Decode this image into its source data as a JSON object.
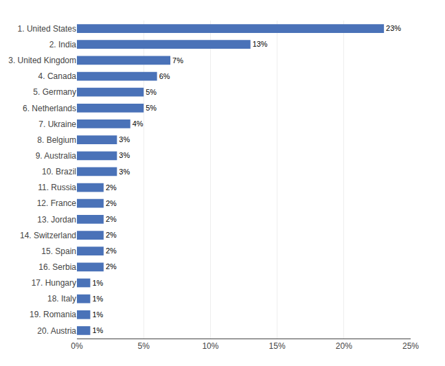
{
  "chart_data": {
    "type": "bar",
    "orientation": "horizontal",
    "categories": [
      "1. United States",
      "2. India",
      "3. United Kingdom",
      "4. Canada",
      "5. Germany",
      "6. Netherlands",
      "7. Ukraine",
      "8. Belgium",
      "9. Australia",
      "10. Brazil",
      "11. Russia",
      "12. France",
      "13. Jordan",
      "14. Switzerland",
      "15. Spain",
      "16. Serbia",
      "17. Hungary",
      "18. Italy",
      "19. Romania",
      "20. Austria"
    ],
    "values": [
      23,
      13,
      7,
      6,
      5,
      5,
      4,
      3,
      3,
      3,
      2,
      2,
      2,
      2,
      2,
      2,
      1,
      1,
      1,
      1
    ],
    "value_labels": [
      "23%",
      "13%",
      "7%",
      "6%",
      "5%",
      "5%",
      "4%",
      "3%",
      "3%",
      "3%",
      "2%",
      "2%",
      "2%",
      "2%",
      "2%",
      "2%",
      "1%",
      "1%",
      "1%",
      "1%"
    ],
    "data_labels": true,
    "color": "#4a72b8",
    "xlim": [
      0,
      25
    ],
    "xticks": [
      {
        "value": 0,
        "label": "0%"
      },
      {
        "value": 5,
        "label": "5%"
      },
      {
        "value": 10,
        "label": "10%"
      },
      {
        "value": 15,
        "label": "15%"
      },
      {
        "value": 20,
        "label": "20%"
      },
      {
        "value": 25,
        "label": "25%"
      }
    ],
    "grid": true
  }
}
